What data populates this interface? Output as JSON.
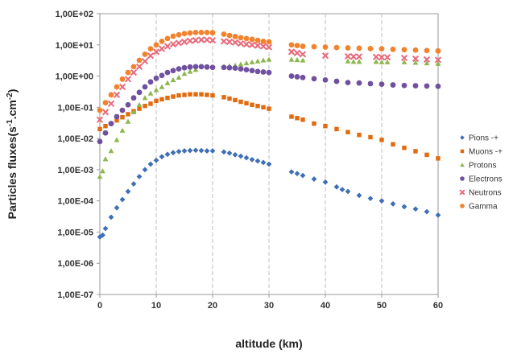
{
  "chart_data": {
    "type": "scatter",
    "xlabel": "altitude (km)",
    "ylabel_main": "Particles fluxes(s",
    "ylabel_sup1": "-1",
    "ylabel_mid": ".cm",
    "ylabel_sup2": "-2",
    "ylabel_end": ")",
    "xlim": [
      0,
      60
    ],
    "ylim": [
      1e-07,
      100
    ],
    "yscale": "log",
    "grid": "vertical",
    "legend_position": "right",
    "x_ticks": [
      "0",
      "10",
      "20",
      "30",
      "40",
      "50",
      "60"
    ],
    "y_ticks": [
      "1,00E+02",
      "1,00E+01",
      "1,00E+00",
      "1,00E-01",
      "1,00E-02",
      "1,00E-03",
      "1,00E-04",
      "1,00E-05",
      "1,00E-06",
      "1,00E-07"
    ],
    "series": [
      {
        "name": "Pions -+",
        "color": "#3f6fb6",
        "marker": "diamond",
        "points": [
          [
            0,
            7e-06
          ],
          [
            0.5,
            8e-06
          ],
          [
            1,
            1.3e-05
          ],
          [
            2,
            3e-05
          ],
          [
            3,
            6e-05
          ],
          [
            4,
            0.00011
          ],
          [
            5,
            0.0002
          ],
          [
            6,
            0.00035
          ],
          [
            7,
            0.0006
          ],
          [
            8,
            0.001
          ],
          [
            9,
            0.0015
          ],
          [
            10,
            0.002
          ],
          [
            11,
            0.0026
          ],
          [
            12,
            0.0031
          ],
          [
            13,
            0.0035
          ],
          [
            14,
            0.0038
          ],
          [
            15,
            0.004
          ],
          [
            16,
            0.0041
          ],
          [
            17,
            0.0042
          ],
          [
            18,
            0.0041
          ],
          [
            19,
            0.004
          ],
          [
            20,
            0.004
          ],
          [
            22,
            0.0037
          ],
          [
            23,
            0.0034
          ],
          [
            24,
            0.003
          ],
          [
            25,
            0.0027
          ],
          [
            26,
            0.0024
          ],
          [
            27,
            0.0021
          ],
          [
            28,
            0.0019
          ],
          [
            29,
            0.0017
          ],
          [
            30,
            0.0015
          ],
          [
            34,
            0.00085
          ],
          [
            35,
            0.00075
          ],
          [
            36,
            0.00065
          ],
          [
            38,
            0.0005
          ],
          [
            40,
            0.0004
          ],
          [
            42,
            0.00028
          ],
          [
            43,
            0.00023
          ],
          [
            44,
            0.0002
          ],
          [
            46,
            0.00015
          ],
          [
            48,
            0.00012
          ],
          [
            50,
            0.0001
          ],
          [
            52,
            8e-05
          ],
          [
            54,
            6.5e-05
          ],
          [
            56,
            5.5e-05
          ],
          [
            58,
            4.5e-05
          ],
          [
            60,
            3.5e-05
          ]
        ]
      },
      {
        "name": "Muons -+",
        "color": "#e26a0f",
        "marker": "square",
        "points": [
          [
            0,
            0.02
          ],
          [
            1,
            0.025
          ],
          [
            2,
            0.03
          ],
          [
            3,
            0.038
          ],
          [
            4,
            0.048
          ],
          [
            5,
            0.06
          ],
          [
            6,
            0.075
          ],
          [
            7,
            0.09
          ],
          [
            8,
            0.11
          ],
          [
            9,
            0.13
          ],
          [
            10,
            0.16
          ],
          [
            11,
            0.18
          ],
          [
            12,
            0.2
          ],
          [
            13,
            0.22
          ],
          [
            14,
            0.24
          ],
          [
            15,
            0.25
          ],
          [
            16,
            0.26
          ],
          [
            17,
            0.26
          ],
          [
            18,
            0.26
          ],
          [
            19,
            0.25
          ],
          [
            20,
            0.24
          ],
          [
            22,
            0.21
          ],
          [
            23,
            0.19
          ],
          [
            24,
            0.17
          ],
          [
            25,
            0.15
          ],
          [
            26,
            0.135
          ],
          [
            27,
            0.12
          ],
          [
            28,
            0.11
          ],
          [
            29,
            0.1
          ],
          [
            30,
            0.09
          ],
          [
            34,
            0.05
          ],
          [
            35,
            0.045
          ],
          [
            36,
            0.04
          ],
          [
            38,
            0.03
          ],
          [
            40,
            0.025
          ],
          [
            42,
            0.02
          ],
          [
            44,
            0.016
          ],
          [
            46,
            0.013
          ],
          [
            48,
            0.011
          ],
          [
            50,
            0.009
          ],
          [
            52,
            0.0065
          ],
          [
            54,
            0.005
          ],
          [
            56,
            0.0039
          ],
          [
            58,
            0.003
          ],
          [
            60,
            0.0023
          ]
        ]
      },
      {
        "name": "Protons",
        "color": "#8db64e",
        "marker": "triangle",
        "points": [
          [
            0,
            0.0006
          ],
          [
            0.5,
            0.0009
          ],
          [
            1,
            0.0022
          ],
          [
            2,
            0.004
          ],
          [
            3,
            0.009
          ],
          [
            4,
            0.018
          ],
          [
            5,
            0.035
          ],
          [
            6,
            0.07
          ],
          [
            7,
            0.12
          ],
          [
            8,
            0.2
          ],
          [
            9,
            0.28
          ],
          [
            10,
            0.36
          ],
          [
            11,
            0.45
          ],
          [
            12,
            0.6
          ],
          [
            13,
            0.75
          ],
          [
            14,
            0.9
          ],
          [
            15,
            1.2
          ],
          [
            16,
            1.4
          ],
          [
            17,
            1.6
          ],
          [
            22,
            2
          ],
          [
            23,
            2.1
          ],
          [
            24,
            2.2
          ],
          [
            25,
            2.4
          ],
          [
            26,
            2.6
          ],
          [
            27,
            2.8
          ],
          [
            28,
            3
          ],
          [
            29,
            3.2
          ],
          [
            30,
            3.4
          ],
          [
            34,
            3.4
          ],
          [
            35,
            3.3
          ],
          [
            36,
            3.2
          ],
          [
            44,
            3
          ],
          [
            45,
            2.9
          ],
          [
            46,
            2.9
          ],
          [
            49,
            2.9
          ],
          [
            50,
            2.8
          ],
          [
            51,
            2.8
          ],
          [
            54,
            2.8
          ],
          [
            56,
            2.7
          ],
          [
            58,
            2.6
          ],
          [
            60,
            2.5
          ]
        ]
      },
      {
        "name": "Electrons",
        "color": "#7050a0",
        "marker": "circle",
        "points": [
          [
            0,
            0.008
          ],
          [
            1,
            0.015
          ],
          [
            2,
            0.03
          ],
          [
            3,
            0.05
          ],
          [
            4,
            0.08
          ],
          [
            5,
            0.12
          ],
          [
            6,
            0.2
          ],
          [
            7,
            0.3
          ],
          [
            8,
            0.45
          ],
          [
            9,
            0.65
          ],
          [
            10,
            0.85
          ],
          [
            11,
            1.05
          ],
          [
            12,
            1.3
          ],
          [
            13,
            1.5
          ],
          [
            14,
            1.7
          ],
          [
            15,
            1.85
          ],
          [
            16,
            1.95
          ],
          [
            17,
            2
          ],
          [
            18,
            2
          ],
          [
            19,
            1.95
          ],
          [
            20,
            1.9
          ],
          [
            22,
            1.9
          ],
          [
            23,
            1.85
          ],
          [
            24,
            1.8
          ],
          [
            25,
            1.7
          ],
          [
            26,
            1.6
          ],
          [
            27,
            1.5
          ],
          [
            28,
            1.4
          ],
          [
            29,
            1.35
          ],
          [
            30,
            1.3
          ],
          [
            34,
            1
          ],
          [
            35,
            0.95
          ],
          [
            36,
            0.9
          ],
          [
            38,
            0.82
          ],
          [
            40,
            0.75
          ],
          [
            42,
            0.68
          ],
          [
            44,
            0.62
          ],
          [
            46,
            0.6
          ],
          [
            48,
            0.57
          ],
          [
            50,
            0.55
          ],
          [
            52,
            0.52
          ],
          [
            54,
            0.5
          ],
          [
            56,
            0.49
          ],
          [
            58,
            0.48
          ],
          [
            60,
            0.47
          ]
        ]
      },
      {
        "name": "Neutrons",
        "color": "#e8687a",
        "marker": "cross",
        "points": [
          [
            0,
            0.04
          ],
          [
            1,
            0.07
          ],
          [
            2,
            0.13
          ],
          [
            3,
            0.25
          ],
          [
            4,
            0.45
          ],
          [
            5,
            0.8
          ],
          [
            6,
            1.3
          ],
          [
            7,
            2
          ],
          [
            8,
            3
          ],
          [
            9,
            4.5
          ],
          [
            10,
            6
          ],
          [
            11,
            7.5
          ],
          [
            12,
            9
          ],
          [
            13,
            10.5
          ],
          [
            14,
            11.5
          ],
          [
            15,
            12.5
          ],
          [
            16,
            13.5
          ],
          [
            17,
            14
          ],
          [
            18,
            14.5
          ],
          [
            19,
            14.5
          ],
          [
            20,
            14
          ],
          [
            22,
            13
          ],
          [
            23,
            12.5
          ],
          [
            24,
            12
          ],
          [
            25,
            11
          ],
          [
            26,
            10.5
          ],
          [
            27,
            10
          ],
          [
            28,
            9.5
          ],
          [
            29,
            9
          ],
          [
            30,
            8.5
          ],
          [
            34,
            6
          ],
          [
            35,
            5.5
          ],
          [
            36,
            5
          ],
          [
            40,
            4.5
          ],
          [
            44,
            4.3
          ],
          [
            45,
            4.2
          ],
          [
            46,
            4.2
          ],
          [
            49,
            4.1
          ],
          [
            50,
            4
          ],
          [
            51,
            4
          ],
          [
            54,
            3.8
          ],
          [
            56,
            3.6
          ],
          [
            58,
            3.4
          ],
          [
            60,
            3.3
          ]
        ]
      },
      {
        "name": "Gamma",
        "color": "#f2822c",
        "marker": "circle",
        "points": [
          [
            0,
            0.08
          ],
          [
            1,
            0.14
          ],
          [
            2,
            0.25
          ],
          [
            3,
            0.45
          ],
          [
            4,
            0.8
          ],
          [
            5,
            1.3
          ],
          [
            6,
            2
          ],
          [
            7,
            3.2
          ],
          [
            8,
            5
          ],
          [
            9,
            7.5
          ],
          [
            10,
            10
          ],
          [
            11,
            13
          ],
          [
            12,
            16
          ],
          [
            13,
            19
          ],
          [
            14,
            21
          ],
          [
            15,
            23
          ],
          [
            16,
            24
          ],
          [
            17,
            25
          ],
          [
            18,
            25
          ],
          [
            19,
            25
          ],
          [
            20,
            24.5
          ],
          [
            22,
            22
          ],
          [
            23,
            20
          ],
          [
            24,
            18.5
          ],
          [
            25,
            17
          ],
          [
            26,
            16
          ],
          [
            27,
            15
          ],
          [
            28,
            14
          ],
          [
            29,
            13
          ],
          [
            30,
            12.5
          ],
          [
            34,
            10
          ],
          [
            35,
            9.5
          ],
          [
            36,
            9
          ],
          [
            38,
            8.7
          ],
          [
            40,
            8.5
          ],
          [
            42,
            8.2
          ],
          [
            44,
            8
          ],
          [
            46,
            7.8
          ],
          [
            48,
            7.6
          ],
          [
            50,
            7.5
          ],
          [
            52,
            7.2
          ],
          [
            54,
            7
          ],
          [
            56,
            6.8
          ],
          [
            58,
            6.6
          ],
          [
            60,
            6.4
          ]
        ]
      }
    ]
  }
}
